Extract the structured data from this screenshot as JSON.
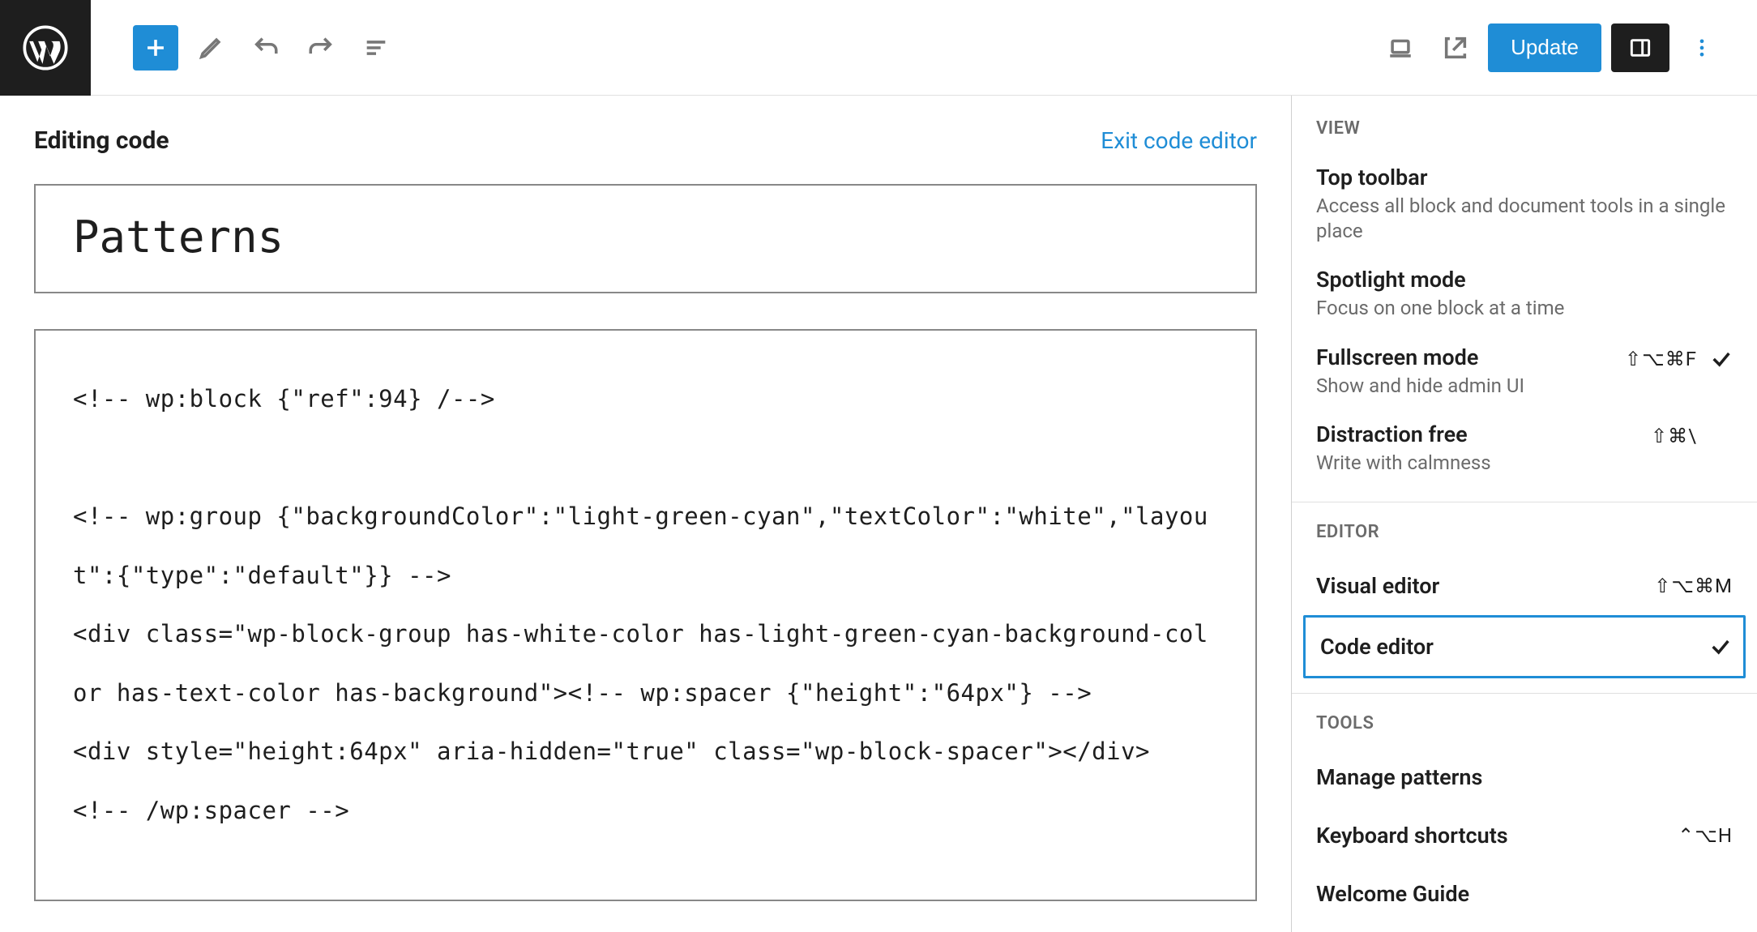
{
  "colors": {
    "accent": "#1f8dd6",
    "dark": "#1e1e1e",
    "muted": "#6b6b6b",
    "border": "#e0e0e0"
  },
  "toolbar": {
    "update_label": "Update"
  },
  "main": {
    "editing_label": "Editing code",
    "exit_link": "Exit code editor",
    "page_title": "Patterns",
    "code": "<!-- wp:block {\"ref\":94} /-->\n\n<!-- wp:group {\"backgroundColor\":\"light-green-cyan\",\"textColor\":\"white\",\"layout\":{\"type\":\"default\"}} -->\n<div class=\"wp-block-group has-white-color has-light-green-cyan-background-color has-text-color has-background\"><!-- wp:spacer {\"height\":\"64px\"} -->\n<div style=\"height:64px\" aria-hidden=\"true\" class=\"wp-block-spacer\"></div>\n<!-- /wp:spacer -->"
  },
  "dropdown": {
    "view_label": "VIEW",
    "items_view": [
      {
        "title": "Top toolbar",
        "desc": "Access all block and document tools in a single place",
        "shortcut": "",
        "checked": false
      },
      {
        "title": "Spotlight mode",
        "desc": "Focus on one block at a time",
        "shortcut": "",
        "checked": false
      },
      {
        "title": "Fullscreen mode",
        "desc": "Show and hide admin UI",
        "shortcut": "⇧⌥⌘F",
        "checked": true
      },
      {
        "title": "Distraction free",
        "desc": "Write with calmness",
        "shortcut": "⇧⌘\\",
        "checked": false
      }
    ],
    "editor_label": "EDITOR",
    "items_editor": [
      {
        "title": "Visual editor",
        "shortcut": "⇧⌥⌘M",
        "selected": false
      },
      {
        "title": "Code editor",
        "shortcut": "",
        "selected": true,
        "checked": true
      }
    ],
    "tools_label": "TOOLS",
    "items_tools": [
      {
        "title": "Manage patterns",
        "shortcut": ""
      },
      {
        "title": "Keyboard shortcuts",
        "shortcut": "⌃⌥H"
      },
      {
        "title": "Welcome Guide",
        "shortcut": ""
      }
    ]
  }
}
